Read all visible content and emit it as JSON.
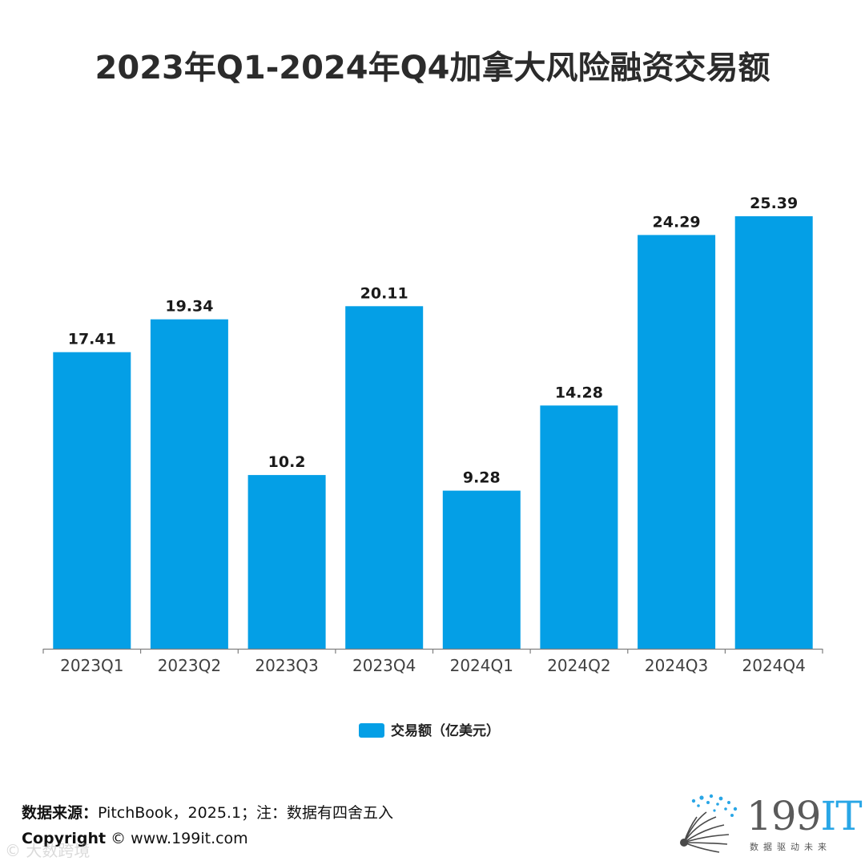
{
  "chart_data": {
    "type": "bar",
    "title": "2023年Q1-2024年Q4加拿大风险融资交易额",
    "categories": [
      "2023Q1",
      "2023Q2",
      "2023Q3",
      "2023Q4",
      "2024Q1",
      "2024Q2",
      "2024Q3",
      "2024Q4"
    ],
    "series": [
      {
        "name": "交易额（亿美元）",
        "values": [
          17.41,
          19.34,
          10.2,
          20.11,
          9.28,
          14.28,
          24.29,
          25.39
        ]
      }
    ],
    "data_labels": [
      "17.41",
      "19.34",
      "10.2",
      "20.11",
      "9.28",
      "14.28",
      "24.29",
      "25.39"
    ],
    "ylim": [
      0,
      25.39
    ],
    "xlabel": "",
    "ylabel": "",
    "grid": false,
    "legend_position": "bottom-center",
    "colors": {
      "bar": "#049fe6",
      "axis": "#7f7f7f",
      "label": "#1a1a1a",
      "tick": "#404040"
    }
  },
  "footer": {
    "source_label": "数据来源：",
    "source_text": "PitchBook，2025.1；注：数据有四舍五入",
    "copyright_label": "Copyright",
    "copyright_text": " © www.199it.com",
    "watermark": "© 大数跨境"
  },
  "logo": {
    "text_number": "199",
    "text_it": "IT",
    "tagline": "数据驱动未来",
    "accent_color": "#29a6e6"
  }
}
